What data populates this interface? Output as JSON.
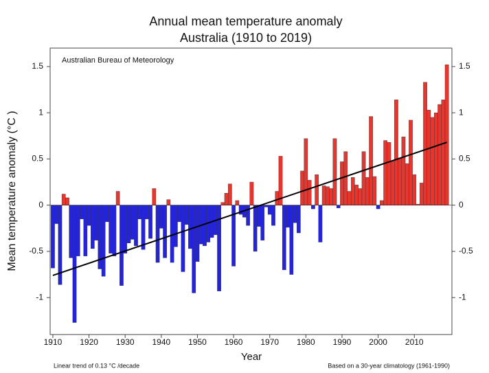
{
  "chart_data": {
    "type": "bar",
    "title": "Annual mean temperature anomaly",
    "subtitle": "Australia (1910 to 2019)",
    "annotation": "Australian Bureau of Meteorology",
    "footnote_left": "Linear trend of 0.13 °C /decade",
    "footnote_right": "Based on a 30-year climatology (1961-1990)",
    "xlabel": "Year",
    "ylabel": "Mean temperature anomaly (°C )",
    "x": [
      1910,
      1911,
      1912,
      1913,
      1914,
      1915,
      1916,
      1917,
      1918,
      1919,
      1920,
      1921,
      1922,
      1923,
      1924,
      1925,
      1926,
      1927,
      1928,
      1929,
      1930,
      1931,
      1932,
      1933,
      1934,
      1935,
      1936,
      1937,
      1938,
      1939,
      1940,
      1941,
      1942,
      1943,
      1944,
      1945,
      1946,
      1947,
      1948,
      1949,
      1950,
      1951,
      1952,
      1953,
      1954,
      1955,
      1956,
      1957,
      1958,
      1959,
      1960,
      1961,
      1962,
      1963,
      1964,
      1965,
      1966,
      1967,
      1968,
      1969,
      1970,
      1971,
      1972,
      1973,
      1974,
      1975,
      1976,
      1977,
      1978,
      1979,
      1980,
      1981,
      1982,
      1983,
      1984,
      1985,
      1986,
      1987,
      1988,
      1989,
      1990,
      1991,
      1992,
      1993,
      1994,
      1995,
      1996,
      1997,
      1998,
      1999,
      2000,
      2001,
      2002,
      2003,
      2004,
      2005,
      2006,
      2007,
      2008,
      2009,
      2010,
      2011,
      2012,
      2013,
      2014,
      2015,
      2016,
      2017,
      2018,
      2019
    ],
    "values": [
      -0.68,
      -0.2,
      -0.86,
      0.12,
      0.08,
      -0.57,
      -1.27,
      -0.55,
      -0.15,
      -0.55,
      -0.22,
      -0.47,
      -0.38,
      -0.69,
      -0.77,
      -0.18,
      -0.52,
      -0.55,
      0.15,
      -0.87,
      -0.52,
      -0.41,
      -0.37,
      -0.44,
      -0.15,
      -0.48,
      -0.15,
      -0.36,
      0.18,
      -0.62,
      -0.25,
      -0.57,
      0.06,
      -0.62,
      -0.45,
      -0.18,
      -0.72,
      -0.21,
      -0.47,
      -0.95,
      -0.61,
      -0.42,
      -0.44,
      -0.4,
      -0.35,
      -0.32,
      -0.93,
      0.03,
      0.13,
      0.23,
      -0.66,
      0.05,
      -0.1,
      -0.13,
      -0.22,
      0.25,
      -0.5,
      -0.23,
      -0.38,
      -0.02,
      -0.1,
      -0.22,
      0.15,
      0.53,
      -0.7,
      -0.24,
      -0.75,
      -0.19,
      -0.3,
      0.37,
      0.72,
      0.27,
      -0.04,
      0.33,
      -0.4,
      0.21,
      0.2,
      0.18,
      0.72,
      -0.03,
      0.47,
      0.58,
      0.15,
      0.3,
      0.22,
      0.18,
      0.58,
      0.3,
      0.96,
      0.31,
      -0.04,
      0.05,
      0.7,
      0.68,
      0.48,
      1.14,
      0.51,
      0.74,
      0.45,
      0.92,
      0.33,
      0.01,
      0.24,
      1.33,
      1.03,
      0.95,
      1.0,
      1.09,
      1.14,
      1.52
    ],
    "positive_color": "#e8362f",
    "negative_color": "#2424dc",
    "trend": {
      "x": [
        1910,
        2019
      ],
      "values": [
        -0.76,
        0.68
      ],
      "color": "#000000"
    },
    "xlim": [
      1909.25,
      2020.4
    ],
    "ylim": [
      -1.4,
      1.7
    ],
    "xticks": [
      1910,
      1920,
      1930,
      1940,
      1950,
      1960,
      1970,
      1980,
      1990,
      2000,
      2010
    ],
    "yticks": [
      1.5,
      1,
      0.5,
      0,
      -0.5,
      -1
    ],
    "y2ticks": [
      1.5,
      1,
      0.5,
      0,
      -0.5,
      -1
    ]
  }
}
